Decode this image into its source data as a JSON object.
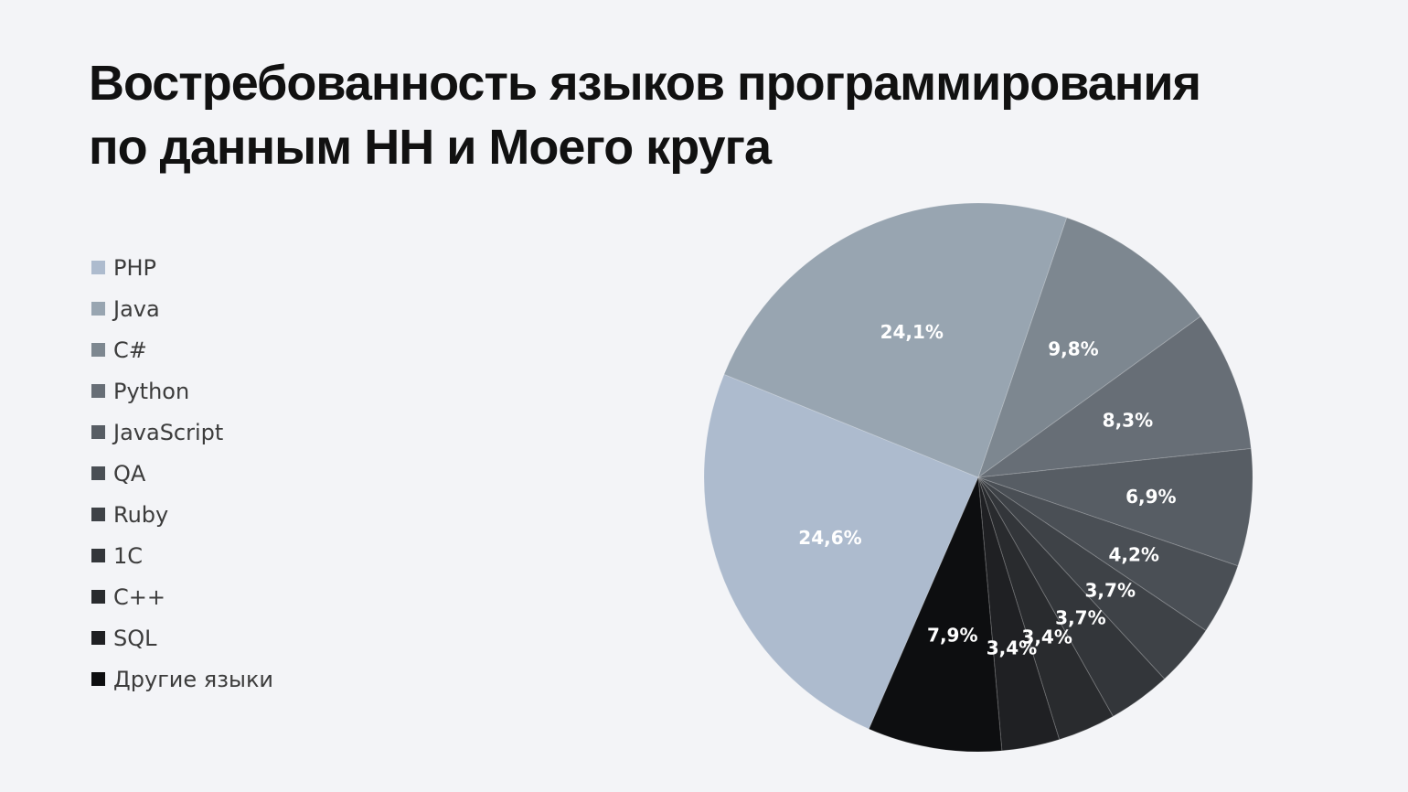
{
  "title": {
    "line1": "Востребованность языков программирования",
    "line2": "по данным HH и Моего круга"
  },
  "chart_data": {
    "type": "pie",
    "title": "Востребованность языков программирования по данным HH и Моего круга",
    "legend_position": "left",
    "slices": [
      {
        "label": "PHP",
        "value": 24.6,
        "display": "24,6%",
        "color": "#adbbce"
      },
      {
        "label": "Java",
        "value": 24.1,
        "display": "24,1%",
        "color": "#98a5b1"
      },
      {
        "label": "C#",
        "value": 9.8,
        "display": "9,8%",
        "color": "#7d8790"
      },
      {
        "label": "Python",
        "value": 8.3,
        "display": "8,3%",
        "color": "#676e76"
      },
      {
        "label": "JavaScript",
        "value": 6.9,
        "display": "6,9%",
        "color": "#575d64"
      },
      {
        "label": "QA",
        "value": 4.2,
        "display": "4,2%",
        "color": "#4a4f55"
      },
      {
        "label": "Ruby",
        "value": 3.7,
        "display": "3,7%",
        "color": "#3e4247"
      },
      {
        "label": "1C",
        "value": 3.7,
        "display": "3,7%",
        "color": "#33363a"
      },
      {
        "label": "C++",
        "value": 3.4,
        "display": "3,4%",
        "color": "#292b2e"
      },
      {
        "label": "SQL",
        "value": 3.4,
        "display": "3,4%",
        "color": "#1f2023"
      },
      {
        "label": "Другие языки",
        "value": 7.9,
        "display": "7,9%",
        "color": "#0d0e10"
      }
    ]
  }
}
